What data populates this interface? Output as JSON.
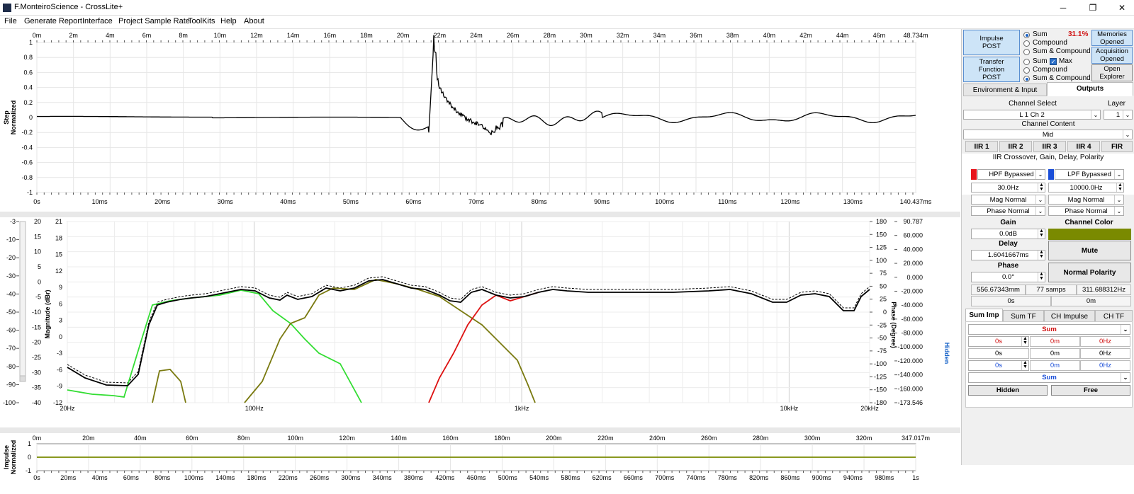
{
  "window": {
    "title": "F.MonteiroScience - CrossLite+",
    "minimize_icon": "minimize-icon",
    "maximize_icon": "maximize-icon",
    "close_icon": "close-icon"
  },
  "menu": [
    "File",
    "Generate Report",
    "Interface",
    "Project Sample Rate",
    "ToolKits",
    "Help",
    "About"
  ],
  "step_plot": {
    "ylabel": "Step\nNormalized",
    "top_axis": [
      "0m",
      "2m",
      "4m",
      "6m",
      "8m",
      "10m",
      "12m",
      "14m",
      "16m",
      "18m",
      "20m",
      "22m",
      "24m",
      "26m",
      "28m",
      "30m",
      "32m",
      "34m",
      "36m",
      "38m",
      "40m",
      "42m",
      "44m",
      "46m",
      "48.734m"
    ],
    "bottom_axis": [
      "0s",
      "10ms",
      "20ms",
      "30ms",
      "40ms",
      "50ms",
      "60ms",
      "70ms",
      "80ms",
      "90ms",
      "100ms",
      "110ms",
      "120ms",
      "130ms",
      "140.437ms"
    ],
    "y_ticks": [
      "1",
      "0.8",
      "0.6",
      "0.4",
      "0.2",
      "0",
      "-0.2",
      "-0.4",
      "-0.6",
      "-0.8",
      "-1"
    ]
  },
  "tf_plot": {
    "ylabel_left": "Magnitude (dBr)",
    "ylabel_right": "Phase (Degree)",
    "hidden_label": "Hidden",
    "outer_left_ticks": [
      "-3",
      "-10",
      "-20",
      "-30",
      "-40",
      "-50",
      "-60",
      "-70",
      "-80",
      "-90",
      "-100"
    ],
    "mag_ticks_a": [
      "20",
      "15",
      "10",
      "5",
      "0",
      "-5",
      "-10",
      "-15",
      "-20",
      "-25",
      "-30",
      "-35",
      "-40"
    ],
    "mag_ticks_b": [
      "21",
      "18",
      "15",
      "12",
      "9",
      "6",
      "3",
      "0",
      "-3",
      "-6",
      "-9",
      "-12"
    ],
    "phase_ticks": [
      "180",
      "150",
      "125",
      "100",
      "75",
      "50",
      "25",
      "0",
      "-25",
      "-50",
      "-75",
      "-100",
      "-125",
      "-150",
      "-180"
    ],
    "right_ticks": [
      "90.787",
      "60.000",
      "40.000",
      "20.000",
      "0.000",
      "-20.000",
      "-40.000",
      "-60.000",
      "-80.000",
      "-100.000",
      "-120.000",
      "-140.000",
      "-160.000",
      "-173.546"
    ],
    "freq_labels": [
      "20Hz",
      "100Hz",
      "1kHz",
      "10kHz",
      "20kHz"
    ],
    "colors": {
      "sum": "#000000",
      "low": "#33dd33",
      "mid": "#7a7a10",
      "high": "#dd1111"
    }
  },
  "imp_plot": {
    "ylabel": "Impulse\nNormalized",
    "y_ticks": [
      "1",
      "0",
      "-1"
    ],
    "top_axis": [
      "0m",
      "20m",
      "40m",
      "60m",
      "80m",
      "100m",
      "120m",
      "140m",
      "160m",
      "180m",
      "200m",
      "220m",
      "240m",
      "260m",
      "280m",
      "300m",
      "320m",
      "347.017m"
    ],
    "bottom_axis": [
      "0s",
      "20ms",
      "40ms",
      "60ms",
      "80ms",
      "100ms",
      "140ms",
      "180ms",
      "220ms",
      "260ms",
      "300ms",
      "340ms",
      "380ms",
      "420ms",
      "460ms",
      "500ms",
      "540ms",
      "580ms",
      "620ms",
      "660ms",
      "700ms",
      "740ms",
      "780ms",
      "820ms",
      "860ms",
      "900ms",
      "940ms",
      "980ms",
      "1s"
    ]
  },
  "right": {
    "impulse_btn": "Impulse\nPOST",
    "transfer_btn": "Transfer\nFunction\nPOST",
    "radio_top": [
      "Sum",
      "Compound",
      "Sum & Compound"
    ],
    "percent": "31.1%",
    "radio_bottom": [
      "Sum",
      "Max",
      "Compound",
      "Sum & Compound"
    ],
    "memories_btn": "Memories\nOpened",
    "acquisition_btn": "Acquisition\nOpened",
    "explorer_btn": "Open\nExplorer",
    "tab_env": "Environment & Input",
    "tab_outputs": "Outputs",
    "channel_select_label": "Channel Select",
    "layer_label": "Layer",
    "channel_value": "L 1 Ch 2",
    "layer_value": "1",
    "channel_content_label": "Channel Content",
    "channel_content_value": "Mid",
    "filter_tabs": [
      "IIR 1",
      "IIR 2",
      "IIR 3",
      "IIR 4",
      "FIR"
    ],
    "section_title": "IIR Crossover, Gain, Delay, Polarity",
    "hpf": {
      "type": "HPF Bypassed",
      "freq": "30.0Hz",
      "mag": "Mag Normal",
      "phase": "Phase Normal",
      "color": "#e8141c"
    },
    "lpf": {
      "type": "LPF Bypassed",
      "freq": "10000.0Hz",
      "mag": "Mag Normal",
      "phase": "Phase Normal",
      "color": "#1a4ed8"
    },
    "gain_label": "Gain",
    "gain_value": "0.0dB",
    "channel_color_label": "Channel Color",
    "channel_color": "#7a8a00",
    "delay_label": "Delay",
    "delay_value": "1.6041667ms",
    "mute_btn": "Mute",
    "phase_label": "Phase",
    "phase_value": "0.0°",
    "polarity_btn": "Normal Polarity",
    "info": [
      "556.67343mm",
      "77 samps",
      "311.688312Hz"
    ],
    "info2": [
      "0s",
      "0m"
    ],
    "bottom_tabs": [
      "Sum Imp",
      "Sum TF",
      "CH Impulse",
      "CH TF"
    ],
    "sum_dropdown": "Sum",
    "cursor_rows": [
      [
        "0s",
        "0m",
        "0Hz"
      ],
      [
        "0s",
        "0m",
        "0Hz"
      ],
      [
        "0s",
        "0m",
        "0Hz"
      ]
    ],
    "sum_dropdown2": "Sum",
    "hidden_btn": "Hidden",
    "free_btn": "Free"
  }
}
